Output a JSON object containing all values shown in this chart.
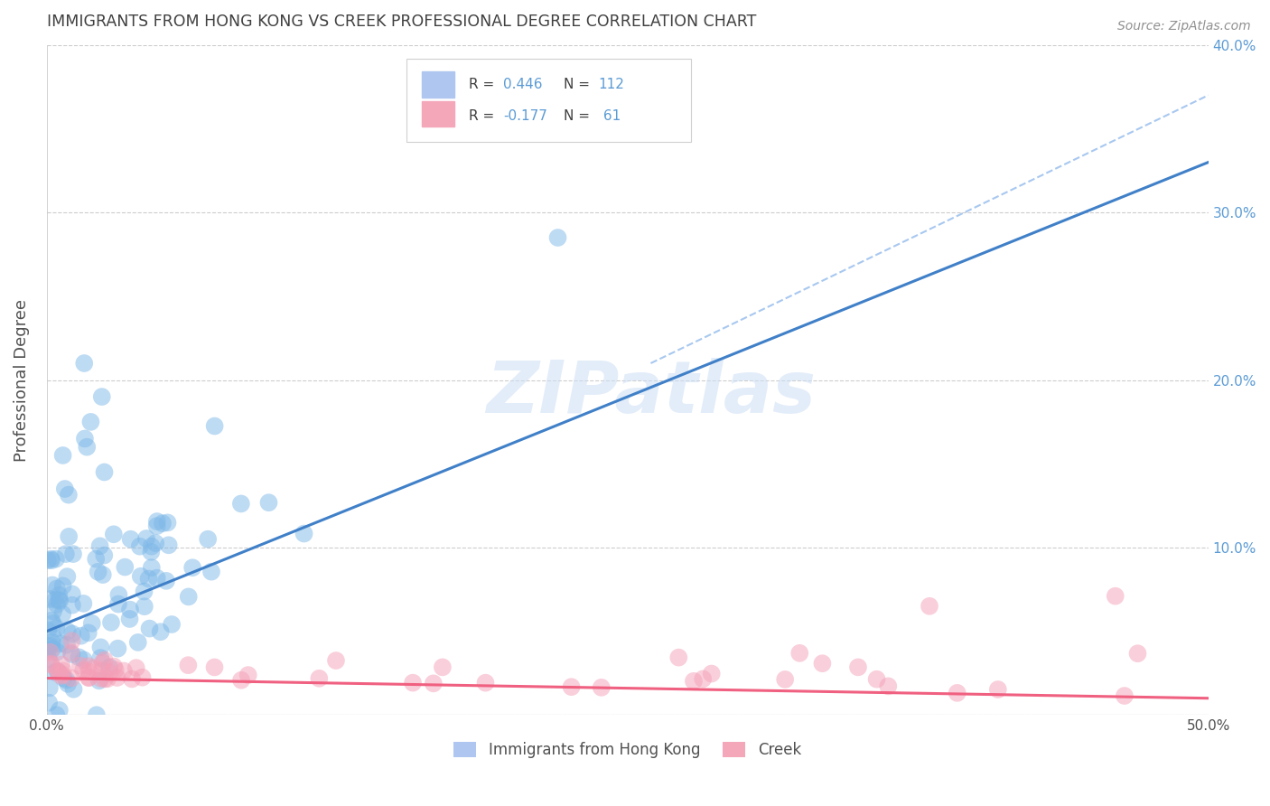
{
  "title": "IMMIGRANTS FROM HONG KONG VS CREEK PROFESSIONAL DEGREE CORRELATION CHART",
  "source": "Source: ZipAtlas.com",
  "ylabel": "Professional Degree",
  "watermark": "ZIPatlas",
  "blue_color": "#5b9bd5",
  "pink_color": "#f48098",
  "blue_scatter_color": "#7db8e8",
  "pink_scatter_color": "#f4a0b8",
  "blue_line_color": "#4080c8",
  "pink_line_color": "#f06080",
  "dashed_line_color": "#a8c8f0",
  "background_color": "#ffffff",
  "grid_color": "#c8c8c8",
  "title_color": "#404040",
  "right_axis_color": "#5b9bd5",
  "legend_blue_fill": "#aec6f0",
  "legend_pink_fill": "#f4a7b9",
  "seed": 42,
  "xlim": [
    0.0,
    0.5
  ],
  "ylim": [
    0.0,
    0.4
  ],
  "blue_R": 0.446,
  "blue_N": 112,
  "pink_R": -0.177,
  "pink_N": 61,
  "blue_line_x0": 0.0,
  "blue_line_y0": 0.05,
  "blue_line_x1": 0.5,
  "blue_line_y1": 0.33,
  "pink_line_x0": 0.0,
  "pink_line_y0": 0.022,
  "pink_line_x1": 0.5,
  "pink_line_y1": 0.01,
  "dash_line_x0": 0.26,
  "dash_line_y0": 0.21,
  "dash_line_x1": 0.5,
  "dash_line_y1": 0.37
}
